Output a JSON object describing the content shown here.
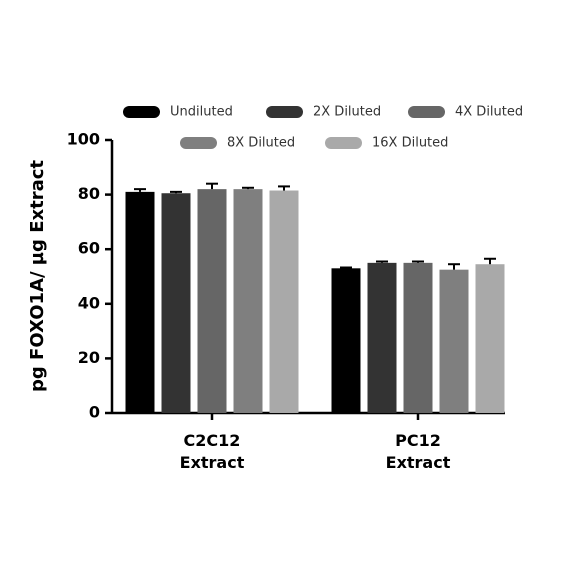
{
  "chart_data": {
    "type": "bar",
    "y_label": "pg FOXO1A/ µg Extract",
    "categories": [
      "C2C12 Extract",
      "PC12 Extract"
    ],
    "series": [
      {
        "name": "Undiluted",
        "color": "#000000",
        "values": [
          81,
          53
        ],
        "errors": [
          1,
          0.3
        ]
      },
      {
        "name": "2X Diluted",
        "color": "#333333",
        "values": [
          80.5,
          55
        ],
        "errors": [
          0.5,
          0.5
        ]
      },
      {
        "name": "4X Diluted",
        "color": "#666666",
        "values": [
          82,
          55
        ],
        "errors": [
          2,
          0.5
        ]
      },
      {
        "name": "8X Diluted",
        "color": "#7f7f7f",
        "values": [
          82,
          52.5
        ],
        "errors": [
          0.5,
          2
        ]
      },
      {
        "name": "16X Diluted",
        "color": "#a9a9a9",
        "values": [
          81.5,
          54.5
        ],
        "errors": [
          1.5,
          2
        ]
      }
    ],
    "ylim": [
      0,
      100
    ],
    "yticks": [
      0,
      20,
      40,
      60,
      80,
      100
    ],
    "legend": "top"
  }
}
